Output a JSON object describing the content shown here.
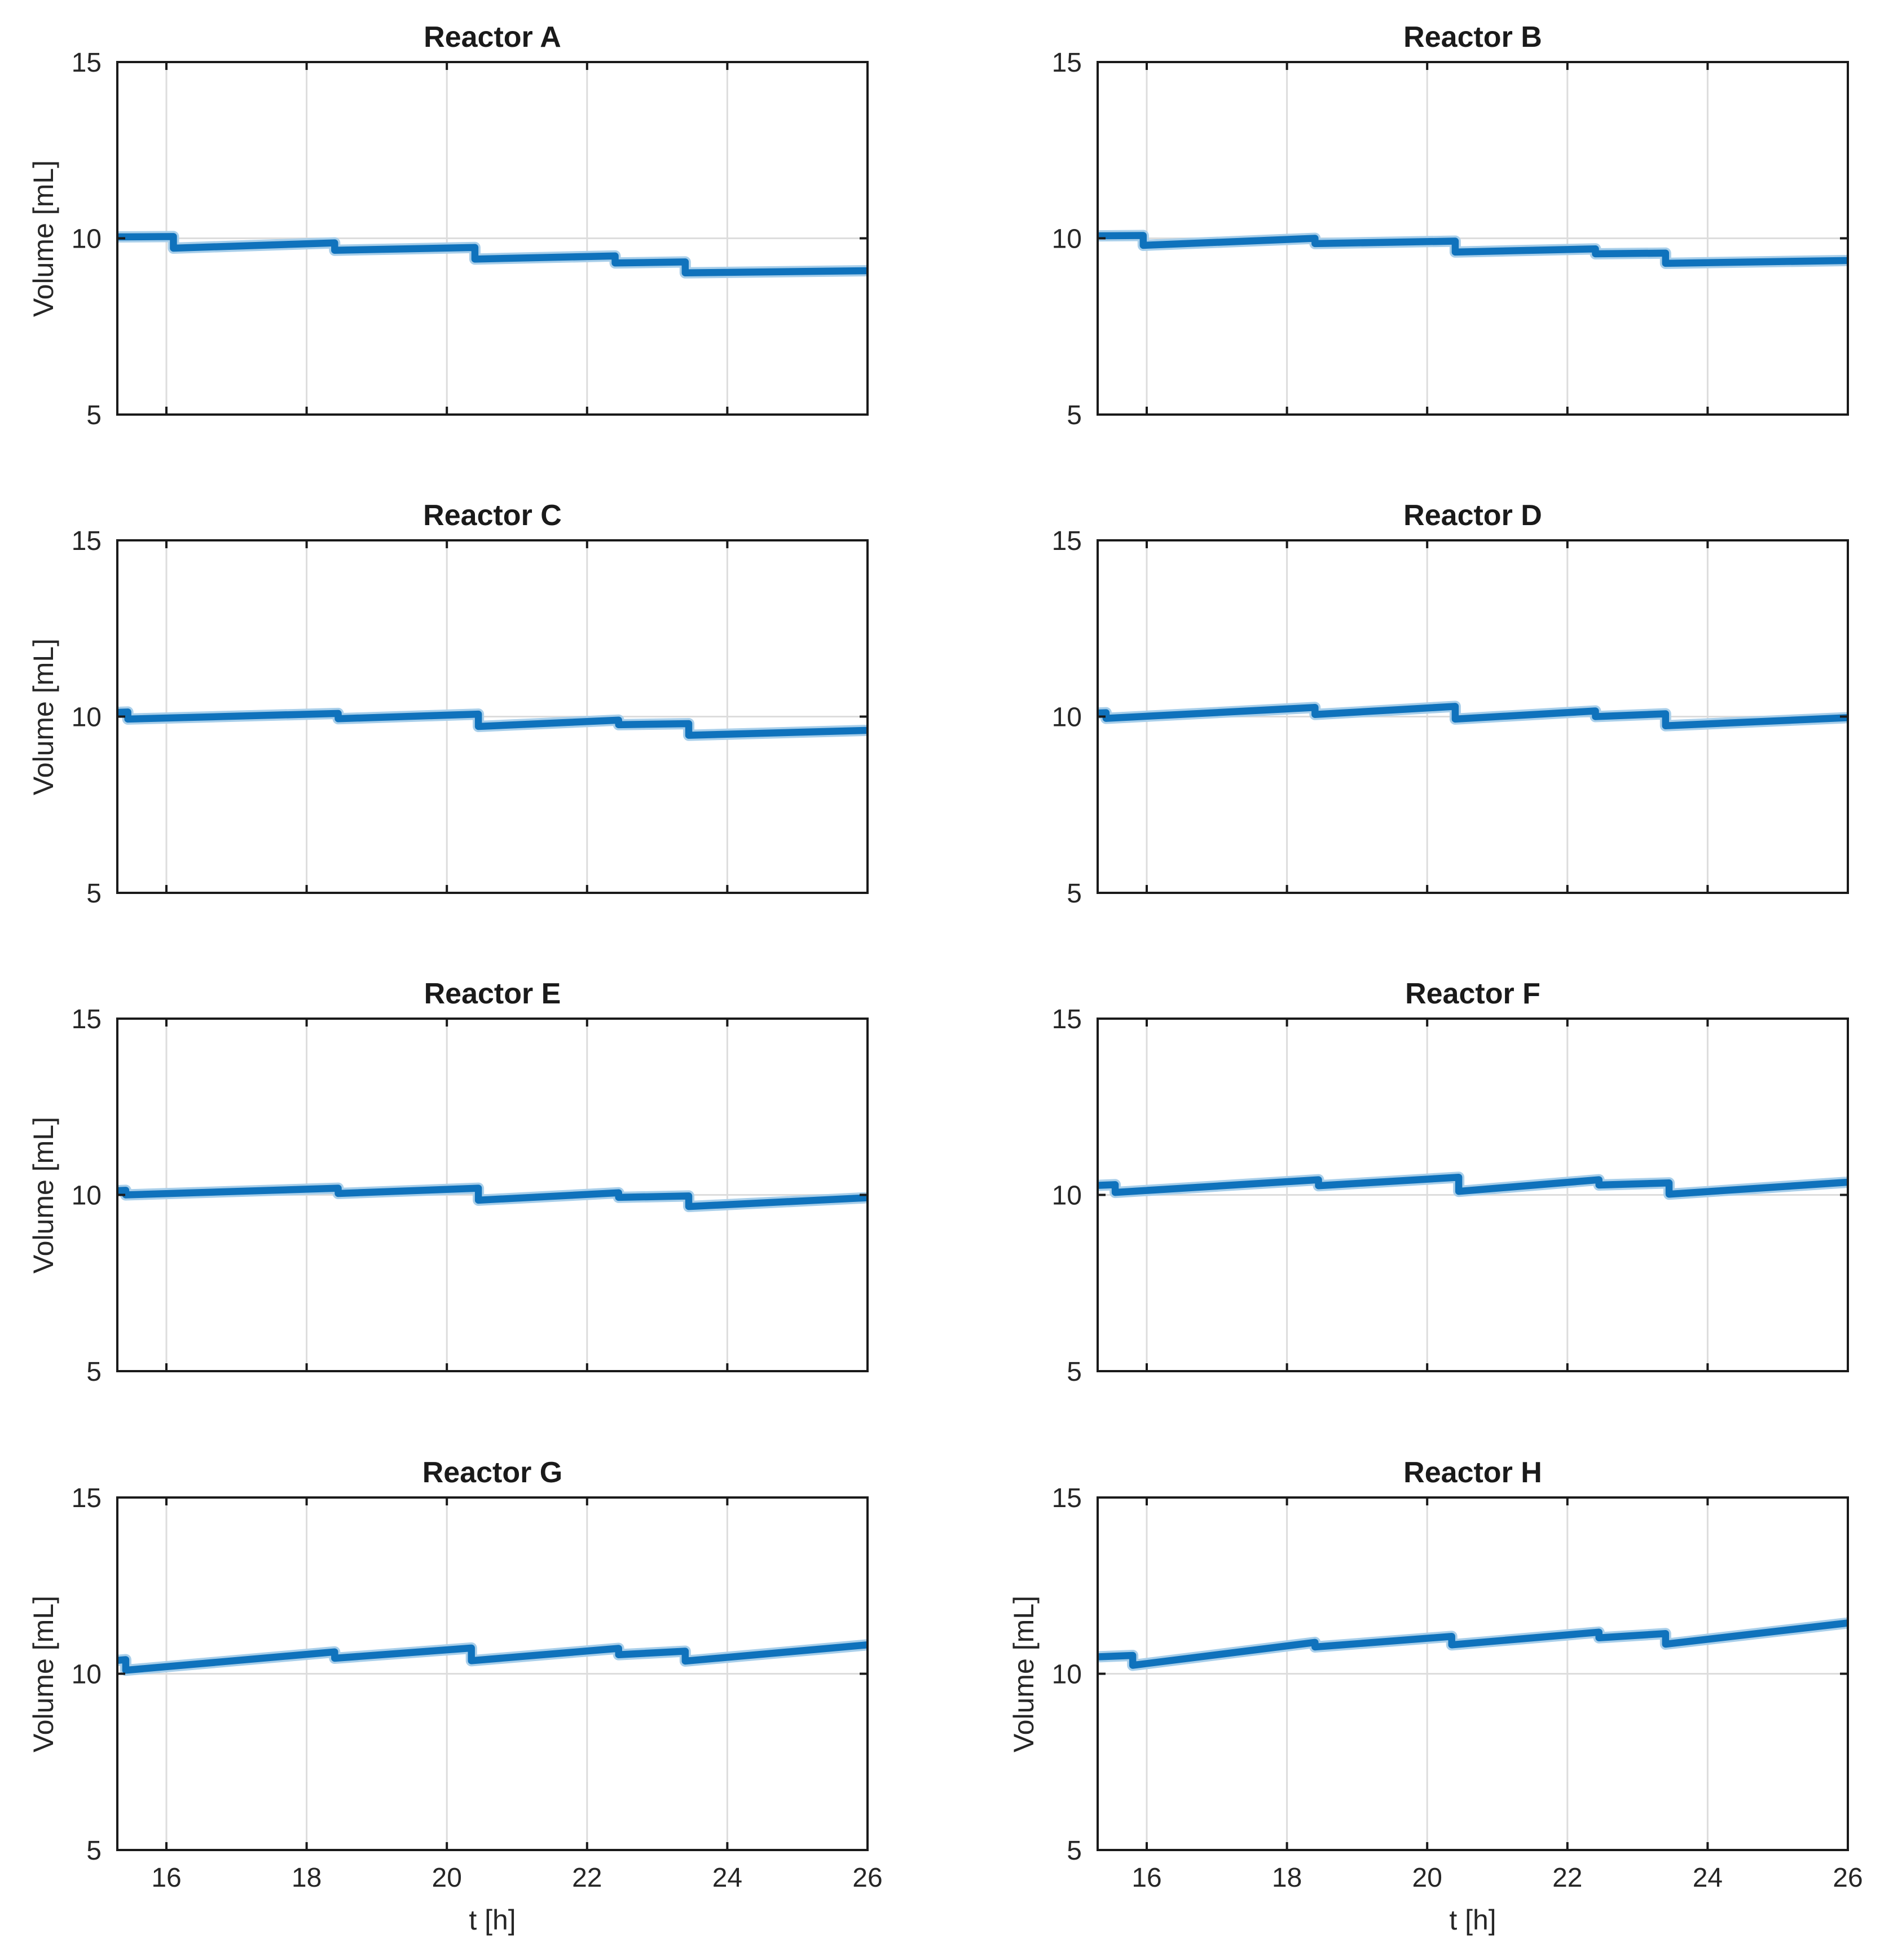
{
  "figure": {
    "background": "#ffffff",
    "line_color": "#0F72BC",
    "line_halo_color": "#A9CFEA",
    "grid_color": "#DDDDDD",
    "axis_color": "#1A1A1A",
    "text_color": "#262626",
    "xlabel": "t [h]",
    "ylabel": "Volume [mL]",
    "x_ticks": [
      16,
      18,
      20,
      22,
      24,
      26
    ],
    "y_ticks": [
      5,
      10,
      15
    ],
    "xlim": [
      15.3,
      26
    ],
    "ylim": [
      5,
      15
    ],
    "grid_on": true,
    "legend": "none"
  },
  "chart_data": [
    {
      "type": "line",
      "title": "Reactor A",
      "show_ylabel": true,
      "show_xticks": false,
      "show_xlabel": false,
      "segments": [
        [
          15.3,
          10.04,
          16.1,
          10.05
        ],
        [
          16.1,
          9.72,
          18.4,
          9.87
        ],
        [
          18.4,
          9.66,
          20.4,
          9.74
        ],
        [
          20.4,
          9.41,
          22.4,
          9.5
        ],
        [
          22.4,
          9.3,
          23.4,
          9.33
        ],
        [
          23.4,
          9.02,
          26.0,
          9.08
        ]
      ]
    },
    {
      "type": "line",
      "title": "Reactor B",
      "show_ylabel": false,
      "show_xticks": false,
      "show_xlabel": false,
      "segments": [
        [
          15.3,
          10.07,
          15.95,
          10.08
        ],
        [
          15.95,
          9.8,
          18.4,
          10.0
        ],
        [
          18.4,
          9.85,
          20.4,
          9.92
        ],
        [
          20.4,
          9.61,
          22.4,
          9.7
        ],
        [
          22.4,
          9.56,
          23.4,
          9.58
        ],
        [
          23.4,
          9.29,
          26.0,
          9.37
        ]
      ]
    },
    {
      "type": "line",
      "title": "Reactor C",
      "show_ylabel": true,
      "show_xticks": false,
      "show_xlabel": false,
      "segments": [
        [
          15.3,
          10.12,
          15.45,
          10.13
        ],
        [
          15.45,
          9.93,
          18.45,
          10.09
        ],
        [
          18.45,
          9.94,
          20.45,
          10.07
        ],
        [
          20.45,
          9.72,
          22.45,
          9.9
        ],
        [
          22.45,
          9.77,
          23.45,
          9.8
        ],
        [
          23.45,
          9.47,
          26.0,
          9.61
        ]
      ]
    },
    {
      "type": "line",
      "title": "Reactor D",
      "show_ylabel": false,
      "show_xticks": false,
      "show_xlabel": false,
      "segments": [
        [
          15.3,
          10.1,
          15.42,
          10.11
        ],
        [
          15.42,
          9.95,
          18.4,
          10.26
        ],
        [
          18.4,
          10.06,
          20.4,
          10.29
        ],
        [
          20.4,
          9.93,
          22.4,
          10.16
        ],
        [
          22.4,
          10.0,
          23.4,
          10.08
        ],
        [
          23.4,
          9.74,
          26.0,
          9.97
        ]
      ]
    },
    {
      "type": "line",
      "title": "Reactor E",
      "show_ylabel": true,
      "show_xticks": false,
      "show_xlabel": false,
      "segments": [
        [
          15.3,
          10.12,
          15.42,
          10.13
        ],
        [
          15.42,
          10.0,
          18.45,
          10.19
        ],
        [
          18.45,
          10.04,
          20.45,
          10.19
        ],
        [
          20.45,
          9.85,
          22.45,
          10.06
        ],
        [
          22.45,
          9.93,
          23.45,
          9.97
        ],
        [
          23.45,
          9.67,
          26.0,
          9.92
        ]
      ]
    },
    {
      "type": "line",
      "title": "Reactor F",
      "show_ylabel": false,
      "show_xticks": false,
      "show_xlabel": false,
      "segments": [
        [
          15.3,
          10.27,
          15.55,
          10.29
        ],
        [
          15.55,
          10.07,
          18.45,
          10.43
        ],
        [
          18.45,
          10.26,
          20.45,
          10.5
        ],
        [
          20.45,
          10.1,
          22.45,
          10.43
        ],
        [
          22.45,
          10.28,
          23.45,
          10.34
        ],
        [
          23.45,
          10.02,
          26.0,
          10.36
        ]
      ]
    },
    {
      "type": "line",
      "title": "Reactor G",
      "show_ylabel": true,
      "show_xticks": true,
      "show_xlabel": true,
      "segments": [
        [
          15.3,
          10.38,
          15.42,
          10.4
        ],
        [
          15.42,
          10.1,
          18.4,
          10.62
        ],
        [
          18.4,
          10.44,
          20.35,
          10.73
        ],
        [
          20.35,
          10.37,
          22.45,
          10.72
        ],
        [
          22.45,
          10.54,
          23.4,
          10.64
        ],
        [
          23.4,
          10.36,
          26.0,
          10.82
        ]
      ]
    },
    {
      "type": "line",
      "title": "Reactor H",
      "show_ylabel": true,
      "show_xticks": true,
      "show_xlabel": true,
      "segments": [
        [
          15.3,
          10.48,
          15.8,
          10.52
        ],
        [
          15.8,
          10.24,
          18.4,
          10.89
        ],
        [
          18.4,
          10.76,
          20.35,
          11.06
        ],
        [
          20.35,
          10.82,
          22.45,
          11.18
        ],
        [
          22.45,
          11.02,
          23.4,
          11.14
        ],
        [
          23.4,
          10.84,
          26.0,
          11.44
        ]
      ]
    }
  ]
}
